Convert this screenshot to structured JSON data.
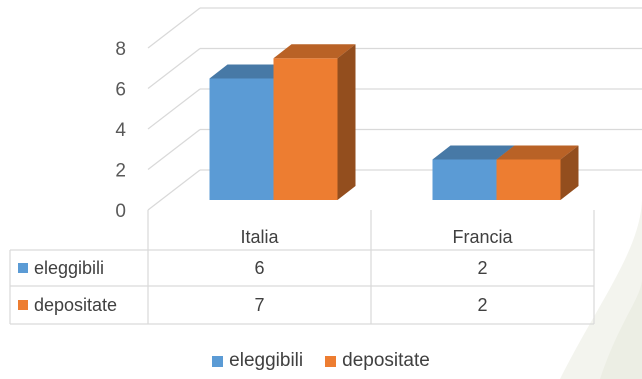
{
  "chart_data": {
    "type": "bar",
    "style": "3d-clustered-column-with-data-table",
    "categories": [
      "Italia",
      "Francia"
    ],
    "series": [
      {
        "name": "eleggibili",
        "values": [
          6,
          2
        ],
        "color": "#5B9BD5"
      },
      {
        "name": "depositate",
        "values": [
          7,
          2
        ],
        "color": "#ED7D31"
      }
    ],
    "y_ticks": [
      "0",
      "2",
      "4",
      "6",
      "8"
    ],
    "ylim": [
      0,
      8
    ],
    "grid": true,
    "legend_position": "bottom",
    "data_table": {
      "rows": [
        {
          "label": "eleggibili",
          "values": [
            "6",
            "2"
          ]
        },
        {
          "label": "depositate",
          "values": [
            "7",
            "2"
          ]
        }
      ]
    }
  }
}
